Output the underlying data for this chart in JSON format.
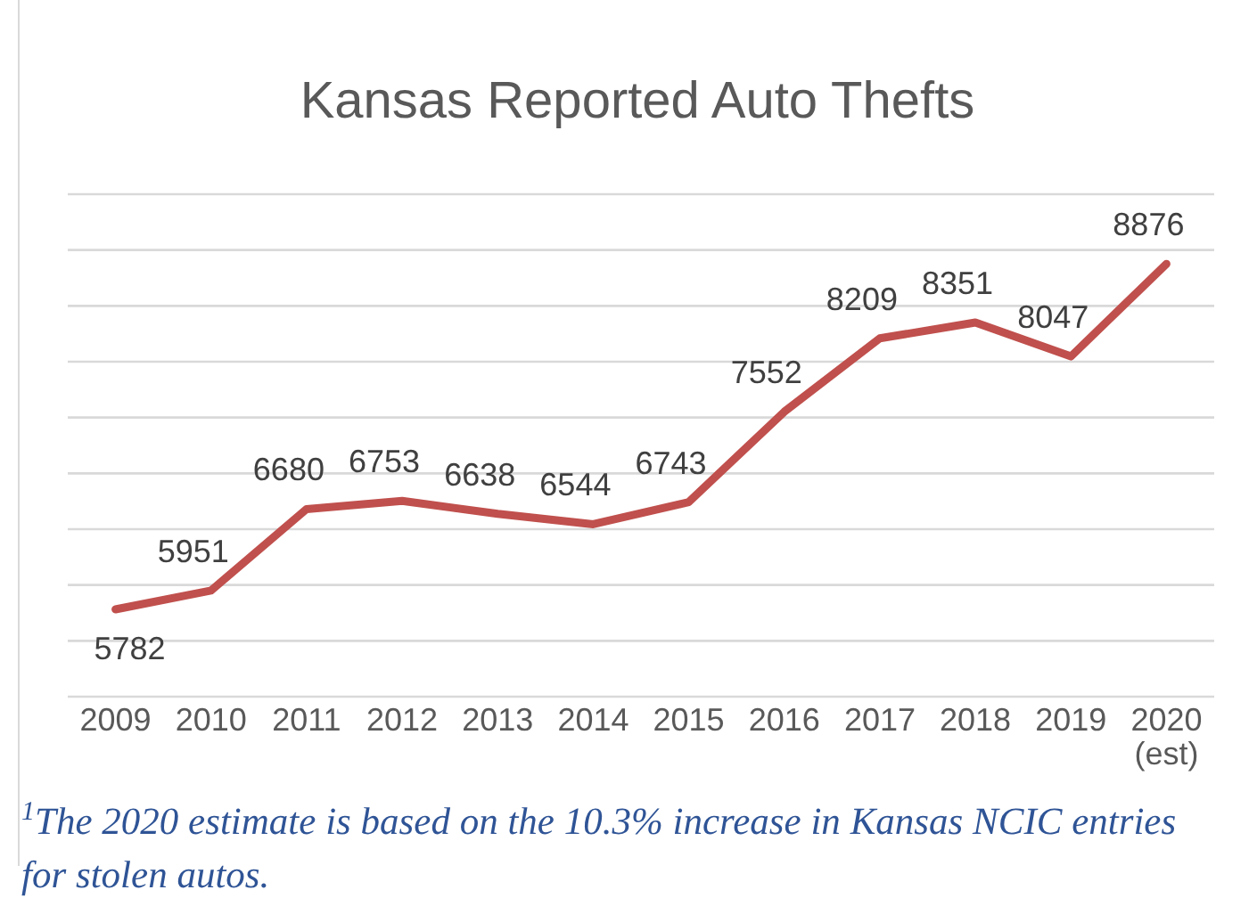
{
  "chart_data": {
    "type": "line",
    "title": "Kansas Reported Auto Thefts",
    "categories": [
      "2009",
      "2010",
      "2011",
      "2012",
      "2013",
      "2014",
      "2015",
      "2016",
      "2017",
      "2018",
      "2019",
      "2020 (est)"
    ],
    "series": [
      {
        "color": "#c0504d",
        "values": [
          5782,
          5951,
          6680,
          6753,
          6638,
          6544,
          6743,
          7552,
          8209,
          8351,
          8047,
          8876
        ]
      }
    ],
    "ylim": [
      5000,
      9500
    ],
    "yticks": [
      {
        "value": 5000,
        "label": null
      },
      {
        "value": 5500,
        "label": null
      },
      {
        "value": 6000,
        "label": null
      },
      {
        "value": 6500,
        "label": null
      },
      {
        "value": 7000,
        "label": null
      },
      {
        "value": 7500,
        "label": null
      },
      {
        "value": 8000,
        "label": null
      },
      {
        "value": 8500,
        "label": null
      },
      {
        "value": 9000,
        "label": null
      },
      {
        "value": 9500,
        "label": null
      }
    ],
    "grid": "y",
    "tick_labels": "x",
    "data_labels": true,
    "marker": "none",
    "line_style": "solid",
    "annotations": [
      "$^{1}$The 2020 estimate is based on the 10.3% increase in Kansas NCIC entries for stolen autos."
    ]
  }
}
